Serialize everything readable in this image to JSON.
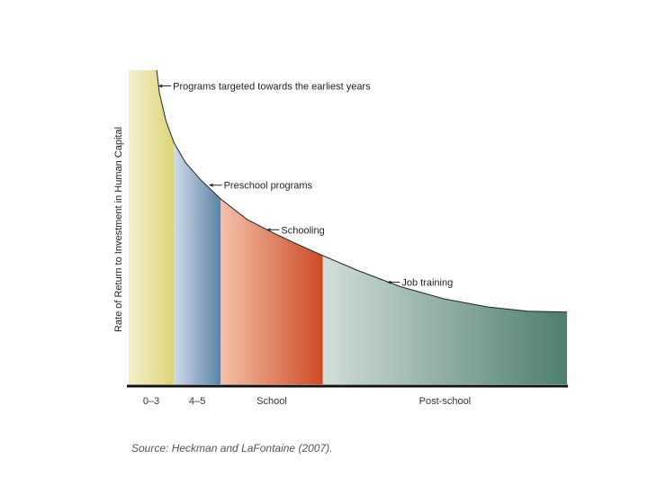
{
  "chart_data": {
    "type": "area",
    "ylabel": "Rate of Return to Investment in Human Capital",
    "xlabel": "",
    "x_range": [
      0,
      100
    ],
    "y_range": [
      0,
      100
    ],
    "segments": [
      {
        "label": "0–3",
        "x_start": 0,
        "x_end": 10.3,
        "color_light": "#f3f0cc",
        "color_dark": "#ded479"
      },
      {
        "label": "4–5",
        "x_start": 10.3,
        "x_end": 21.0,
        "color_light": "#cfdbea",
        "color_dark": "#5c82a6"
      },
      {
        "label": "School",
        "x_start": 21.0,
        "x_end": 44.3,
        "color_light": "#f4c2aa",
        "color_dark": "#cc4b25"
      },
      {
        "label": "Post-school",
        "x_start": 44.3,
        "x_end": 100,
        "color_light": "#d1ded8",
        "color_dark": "#4d7e6c"
      }
    ],
    "curve": [
      {
        "x": 6.4,
        "y": 100
      },
      {
        "x": 7.0,
        "y": 92.8
      },
      {
        "x": 8.5,
        "y": 83.9
      },
      {
        "x": 10.3,
        "y": 77.0
      },
      {
        "x": 13.0,
        "y": 70.5
      },
      {
        "x": 16.5,
        "y": 65.0
      },
      {
        "x": 21.0,
        "y": 59.0
      },
      {
        "x": 27.0,
        "y": 52.5
      },
      {
        "x": 33.0,
        "y": 48.2
      },
      {
        "x": 38.0,
        "y": 44.9
      },
      {
        "x": 44.3,
        "y": 41.0
      },
      {
        "x": 52.0,
        "y": 36.4
      },
      {
        "x": 62.0,
        "y": 31.1
      },
      {
        "x": 72.0,
        "y": 27.2
      },
      {
        "x": 82.0,
        "y": 24.6
      },
      {
        "x": 91.0,
        "y": 23.3
      },
      {
        "x": 100,
        "y": 23.0
      }
    ],
    "annotations": [
      {
        "text": "Programs targeted towards the earliest years",
        "x": 6.8,
        "y": 95.0
      },
      {
        "text": "Preschool programs",
        "x": 18.4,
        "y": 63.4
      },
      {
        "text": "Schooling",
        "x": 31.5,
        "y": 49.2
      },
      {
        "text": "Job training",
        "x": 59.0,
        "y": 32.5
      }
    ]
  },
  "source": "Source: Heckman and LaFontaine (2007)."
}
